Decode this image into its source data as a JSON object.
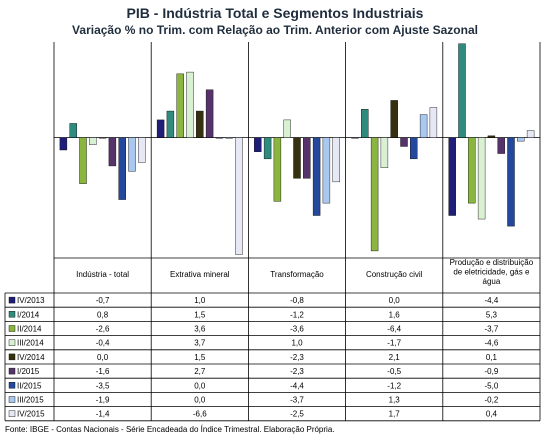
{
  "title": "PIB - Indústria Total e Segmentos Industriais",
  "subtitle": "Variação % no Trim. com Relação ao Trim. Anterior com Ajuste Sazonal",
  "footnote": "Fonte: IBGE - Contas Nacionais - Série Encadeada do Índice Trimestral. Elaboração Própria.",
  "chart_data": {
    "type": "bar",
    "categories": [
      [
        "Indústria - total"
      ],
      [
        "Extrativa mineral"
      ],
      [
        "Transformação"
      ],
      [
        "Construção civil"
      ],
      [
        "Produção e distribuição",
        "de eletricidade, gás e",
        "água"
      ]
    ],
    "series": [
      {
        "name": "IV/2013",
        "color": "#1f1f7a",
        "values": [
          -0.7,
          1.0,
          -0.8,
          0.0,
          -4.4
        ]
      },
      {
        "name": "I/2014",
        "color": "#2e8b7e",
        "values": [
          0.8,
          1.5,
          -1.2,
          1.6,
          5.3
        ]
      },
      {
        "name": "II/2014",
        "color": "#8ab63f",
        "values": [
          -2.6,
          3.6,
          -3.6,
          -6.4,
          -3.7
        ]
      },
      {
        "name": "III/2014",
        "color": "#d9f0d2",
        "values": [
          -0.4,
          3.7,
          1.0,
          -1.7,
          -4.6
        ]
      },
      {
        "name": "IV/2014",
        "color": "#35310f",
        "values": [
          0.0,
          1.5,
          -2.3,
          2.1,
          0.1
        ]
      },
      {
        "name": "I/2015",
        "color": "#56346b",
        "values": [
          -1.6,
          2.7,
          -2.3,
          -0.5,
          -0.9
        ]
      },
      {
        "name": "II/2015",
        "color": "#24489e",
        "values": [
          -3.5,
          0.0,
          -4.4,
          -1.2,
          -5.0
        ]
      },
      {
        "name": "III/2015",
        "color": "#a9c8f0",
        "values": [
          -1.9,
          0.0,
          -3.7,
          1.3,
          -0.2
        ]
      },
      {
        "name": "IV/2015",
        "color": "#e6e8f5",
        "values": [
          -1.4,
          -6.6,
          -2.5,
          1.7,
          0.4
        ]
      }
    ],
    "ylim": [
      -6.8,
      5.4
    ],
    "grid": false,
    "legend": "table below chart"
  }
}
